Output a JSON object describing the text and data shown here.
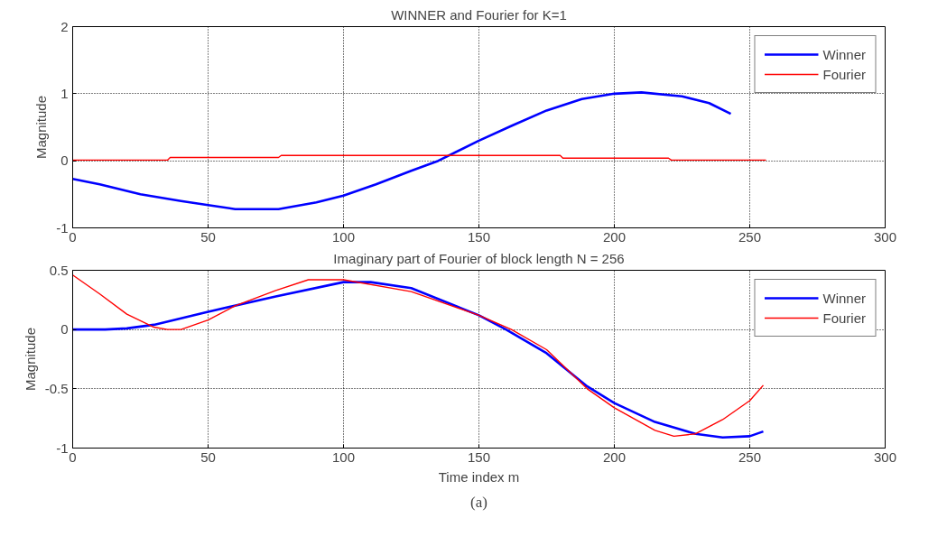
{
  "chart_data": [
    {
      "type": "line",
      "title": "WINNER and Fourier for K=1",
      "ylabel": "Magnitude",
      "xlim": [
        0,
        300
      ],
      "ylim": [
        -1,
        2
      ],
      "xticks": [
        0,
        50,
        100,
        150,
        200,
        250,
        300
      ],
      "yticks": [
        -1,
        0,
        1,
        2
      ],
      "grid": true,
      "legend": "top right",
      "line_style": "solid",
      "series": [
        {
          "name": "Winner",
          "color": "#0000ff",
          "x": [
            0,
            10,
            25,
            40,
            50,
            60,
            76,
            90,
            100,
            112,
            125,
            135,
            150,
            162,
            175,
            188,
            200,
            210,
            225,
            235,
            243
          ],
          "values": [
            -0.27,
            -0.35,
            -0.5,
            -0.6,
            -0.66,
            -0.72,
            -0.72,
            -0.62,
            -0.52,
            -0.35,
            -0.15,
            0,
            0.3,
            0.52,
            0.75,
            0.92,
            1.0,
            1.02,
            0.96,
            0.86,
            0.7
          ]
        },
        {
          "name": "Fourier",
          "color": "#ff0000",
          "x": [
            0,
            35,
            36,
            76,
            77,
            180,
            181,
            220,
            221,
            256
          ],
          "values": [
            0.01,
            0.01,
            0.05,
            0.05,
            0.08,
            0.08,
            0.04,
            0.04,
            0.01,
            0.01
          ]
        }
      ]
    },
    {
      "type": "line",
      "title": "Imaginary part of Fourier of block length N = 256",
      "xlabel": "Time index m",
      "ylabel": "Magnitude",
      "xlim": [
        0,
        300
      ],
      "ylim": [
        -1,
        0.5
      ],
      "xticks": [
        0,
        50,
        100,
        150,
        200,
        250,
        300
      ],
      "yticks": [
        -1,
        -0.5,
        0,
        0.5
      ],
      "grid": true,
      "legend": "top right",
      "line_style": "solid",
      "annotations": [
        "(a)"
      ],
      "series": [
        {
          "name": "Winner",
          "color": "#0000ff",
          "x": [
            0,
            12,
            20,
            30,
            50,
            75,
            100,
            110,
            125,
            150,
            160,
            175,
            190,
            200,
            215,
            230,
            240,
            250,
            255
          ],
          "values": [
            0,
            0,
            0.01,
            0.04,
            0.15,
            0.28,
            0.4,
            0.4,
            0.35,
            0.12,
            0,
            -0.2,
            -0.48,
            -0.62,
            -0.78,
            -0.88,
            -0.91,
            -0.9,
            -0.86
          ]
        },
        {
          "name": "Fourier",
          "color": "#ff0000",
          "x": [
            0,
            10,
            20,
            30,
            35,
            40,
            50,
            60,
            75,
            87,
            100,
            125,
            150,
            162,
            175,
            190,
            200,
            215,
            222,
            230,
            240,
            250,
            255
          ],
          "values": [
            0.46,
            0.3,
            0.13,
            0.02,
            0,
            0,
            0.08,
            0.2,
            0.33,
            0.42,
            0.42,
            0.32,
            0.12,
            0,
            -0.17,
            -0.5,
            -0.66,
            -0.85,
            -0.9,
            -0.88,
            -0.76,
            -0.6,
            -0.47
          ]
        }
      ]
    }
  ]
}
